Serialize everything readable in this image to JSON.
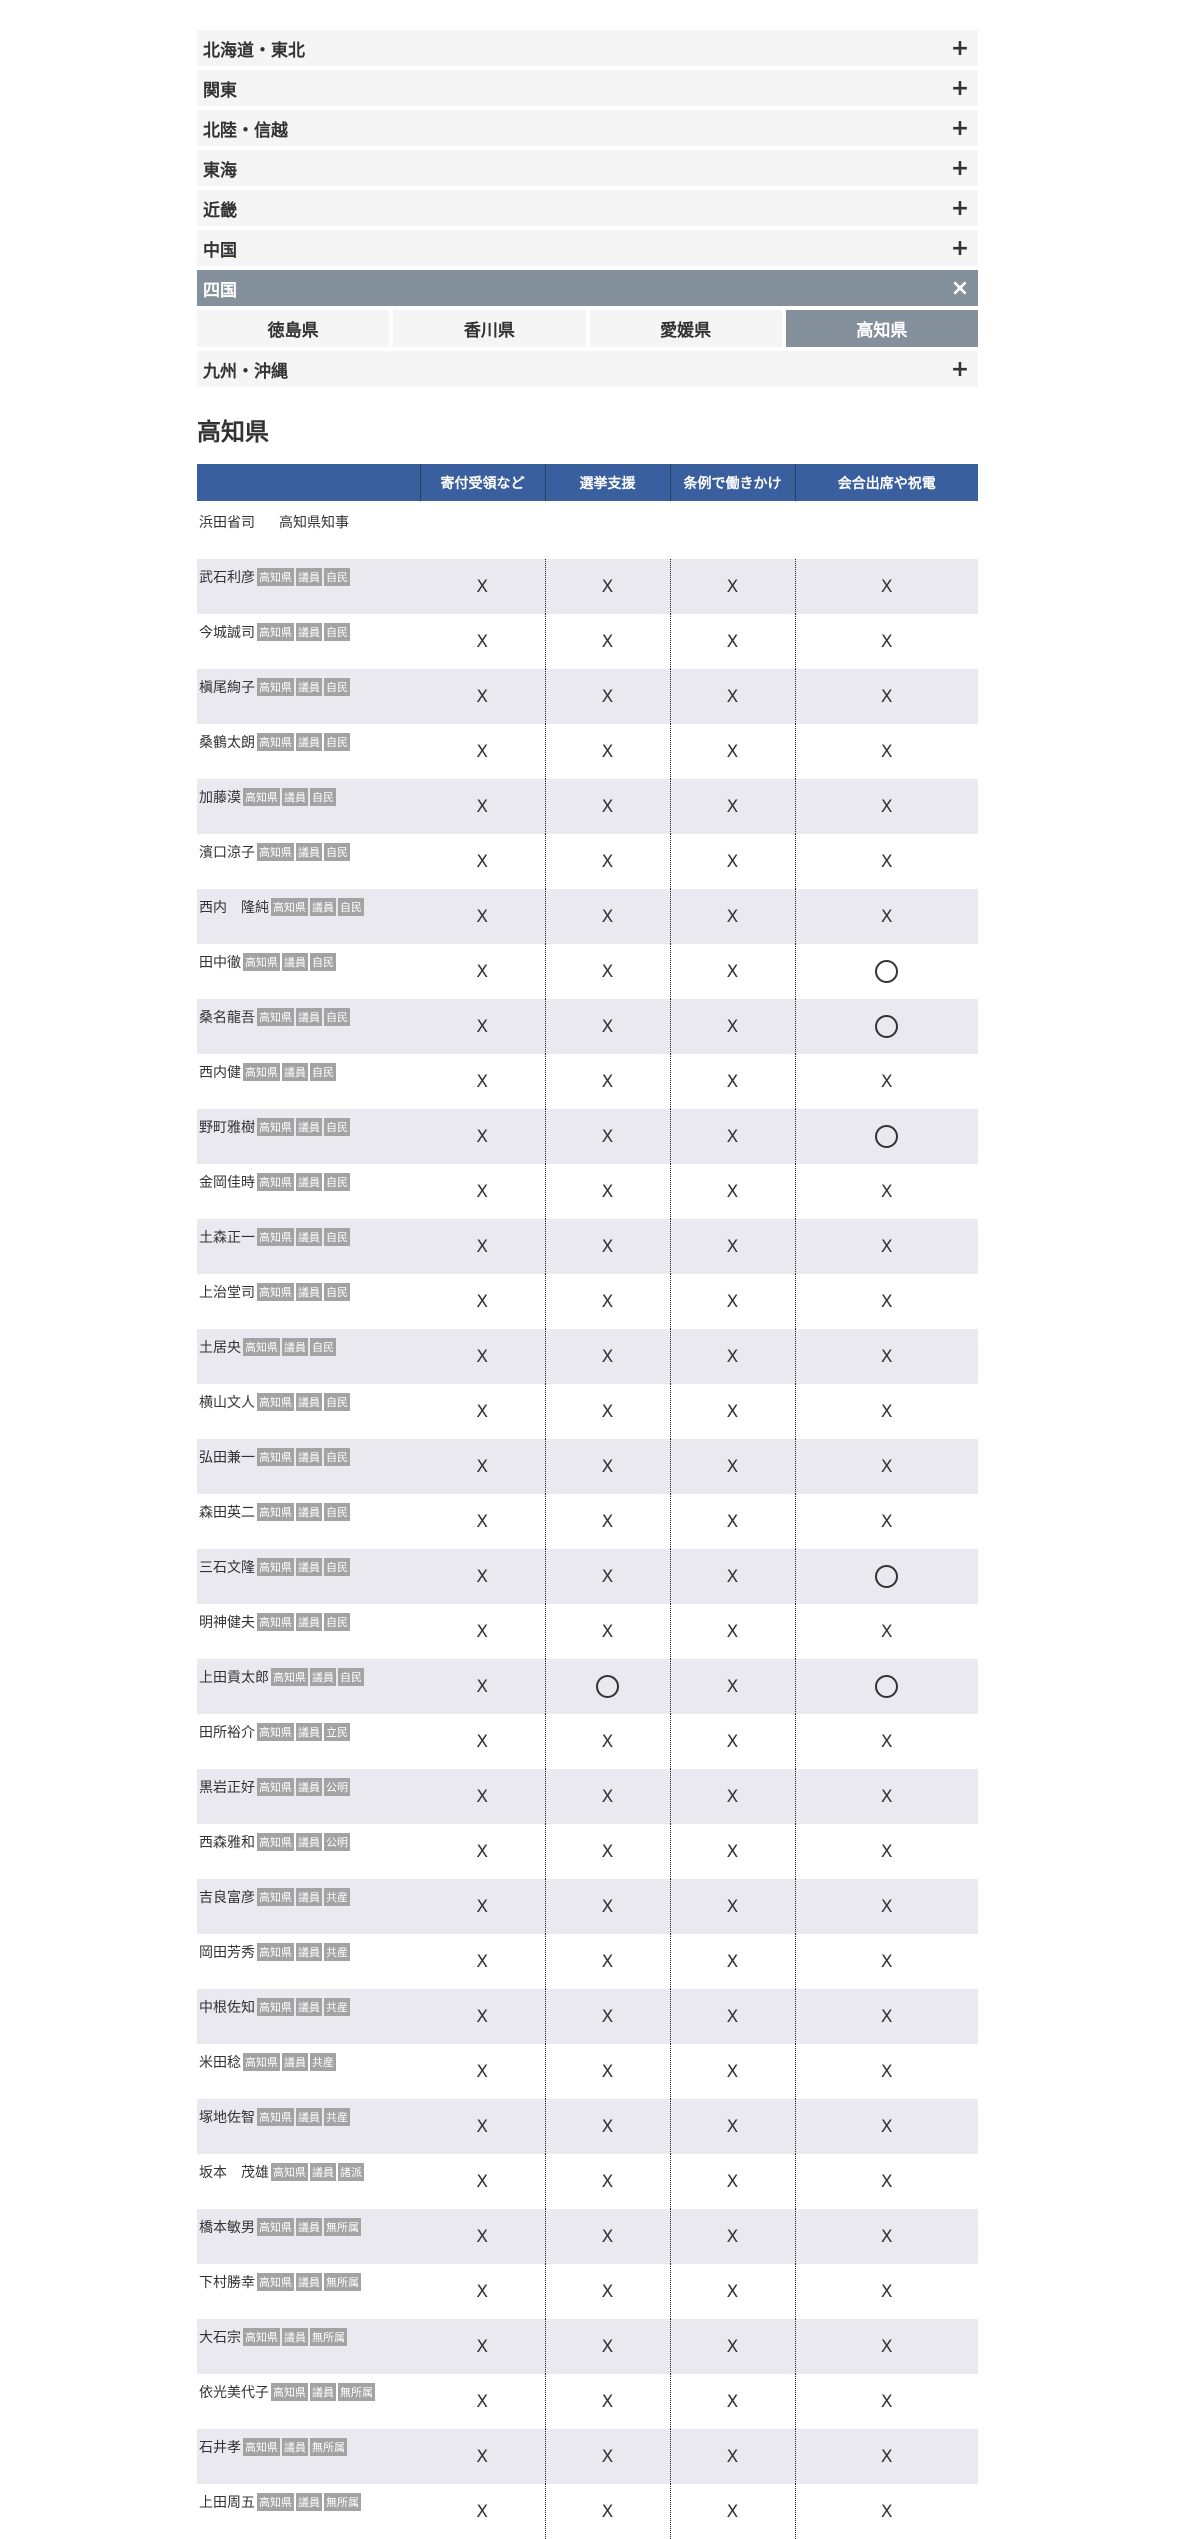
{
  "regions": [
    {
      "label": "北海道・東北",
      "icon": "+",
      "active": false
    },
    {
      "label": "関東",
      "icon": "+",
      "active": false
    },
    {
      "label": "北陸・信越",
      "icon": "+",
      "active": false
    },
    {
      "label": "東海",
      "icon": "+",
      "active": false
    },
    {
      "label": "近畿",
      "icon": "+",
      "active": false
    },
    {
      "label": "中国",
      "icon": "+",
      "active": false
    },
    {
      "label": "四国",
      "icon": "×",
      "active": true
    },
    {
      "label": "九州・沖縄",
      "icon": "+",
      "active": false
    }
  ],
  "prefectures": [
    {
      "label": "徳島県",
      "active": false
    },
    {
      "label": "香川県",
      "active": false
    },
    {
      "label": "愛媛県",
      "active": false
    },
    {
      "label": "高知県",
      "active": true
    }
  ],
  "section_title": "高知県",
  "table": {
    "headers": [
      "寄付受領など",
      "選挙支援",
      "条例で働きかけ",
      "会合出席や祝電"
    ],
    "governor": {
      "name": "浜田省司",
      "title": "高知県知事"
    },
    "rows": [
      {
        "name": "武石利彦",
        "tags": [
          "高知県",
          "議員",
          "自民"
        ],
        "marks": [
          "X",
          "X",
          "X",
          "X"
        ]
      },
      {
        "name": "今城誠司",
        "tags": [
          "高知県",
          "議員",
          "自民"
        ],
        "marks": [
          "X",
          "X",
          "X",
          "X"
        ]
      },
      {
        "name": "槇尾絢子",
        "tags": [
          "高知県",
          "議員",
          "自民"
        ],
        "marks": [
          "X",
          "X",
          "X",
          "X"
        ]
      },
      {
        "name": "桑鶴太朗",
        "tags": [
          "高知県",
          "議員",
          "自民"
        ],
        "marks": [
          "X",
          "X",
          "X",
          "X"
        ]
      },
      {
        "name": "加藤漠",
        "tags": [
          "高知県",
          "議員",
          "自民"
        ],
        "marks": [
          "X",
          "X",
          "X",
          "X"
        ]
      },
      {
        "name": "濱口涼子",
        "tags": [
          "高知県",
          "議員",
          "自民"
        ],
        "marks": [
          "X",
          "X",
          "X",
          "X"
        ]
      },
      {
        "name": "西内　隆純",
        "tags": [
          "高知県",
          "議員",
          "自民"
        ],
        "marks": [
          "X",
          "X",
          "X",
          "X"
        ]
      },
      {
        "name": "田中徹",
        "tags": [
          "高知県",
          "議員",
          "自民"
        ],
        "marks": [
          "X",
          "X",
          "X",
          "○"
        ]
      },
      {
        "name": "桑名龍吾",
        "tags": [
          "高知県",
          "議員",
          "自民"
        ],
        "marks": [
          "X",
          "X",
          "X",
          "○"
        ]
      },
      {
        "name": "西内健",
        "tags": [
          "高知県",
          "議員",
          "自民"
        ],
        "marks": [
          "X",
          "X",
          "X",
          "X"
        ]
      },
      {
        "name": "野町雅樹",
        "tags": [
          "高知県",
          "議員",
          "自民"
        ],
        "marks": [
          "X",
          "X",
          "X",
          "○"
        ]
      },
      {
        "name": "金岡佳時",
        "tags": [
          "高知県",
          "議員",
          "自民"
        ],
        "marks": [
          "X",
          "X",
          "X",
          "X"
        ]
      },
      {
        "name": "土森正一",
        "tags": [
          "高知県",
          "議員",
          "自民"
        ],
        "marks": [
          "X",
          "X",
          "X",
          "X"
        ]
      },
      {
        "name": "上治堂司",
        "tags": [
          "高知県",
          "議員",
          "自民"
        ],
        "marks": [
          "X",
          "X",
          "X",
          "X"
        ]
      },
      {
        "name": "土居央",
        "tags": [
          "高知県",
          "議員",
          "自民"
        ],
        "marks": [
          "X",
          "X",
          "X",
          "X"
        ]
      },
      {
        "name": "横山文人",
        "tags": [
          "高知県",
          "議員",
          "自民"
        ],
        "marks": [
          "X",
          "X",
          "X",
          "X"
        ]
      },
      {
        "name": "弘田兼一",
        "tags": [
          "高知県",
          "議員",
          "自民"
        ],
        "marks": [
          "X",
          "X",
          "X",
          "X"
        ]
      },
      {
        "name": "森田英二",
        "tags": [
          "高知県",
          "議員",
          "自民"
        ],
        "marks": [
          "X",
          "X",
          "X",
          "X"
        ]
      },
      {
        "name": "三石文隆",
        "tags": [
          "高知県",
          "議員",
          "自民"
        ],
        "marks": [
          "X",
          "X",
          "X",
          "○"
        ]
      },
      {
        "name": "明神健夫",
        "tags": [
          "高知県",
          "議員",
          "自民"
        ],
        "marks": [
          "X",
          "X",
          "X",
          "X"
        ]
      },
      {
        "name": "上田貢太郎",
        "tags": [
          "高知県",
          "議員",
          "自民"
        ],
        "marks": [
          "X",
          "○",
          "X",
          "○"
        ]
      },
      {
        "name": "田所裕介",
        "tags": [
          "高知県",
          "議員",
          "立民"
        ],
        "marks": [
          "X",
          "X",
          "X",
          "X"
        ]
      },
      {
        "name": "黒岩正好",
        "tags": [
          "高知県",
          "議員",
          "公明"
        ],
        "marks": [
          "X",
          "X",
          "X",
          "X"
        ]
      },
      {
        "name": "西森雅和",
        "tags": [
          "高知県",
          "議員",
          "公明"
        ],
        "marks": [
          "X",
          "X",
          "X",
          "X"
        ]
      },
      {
        "name": "吉良富彦",
        "tags": [
          "高知県",
          "議員",
          "共産"
        ],
        "marks": [
          "X",
          "X",
          "X",
          "X"
        ]
      },
      {
        "name": "岡田芳秀",
        "tags": [
          "高知県",
          "議員",
          "共産"
        ],
        "marks": [
          "X",
          "X",
          "X",
          "X"
        ]
      },
      {
        "name": "中根佐知",
        "tags": [
          "高知県",
          "議員",
          "共産"
        ],
        "marks": [
          "X",
          "X",
          "X",
          "X"
        ]
      },
      {
        "name": "米田稔",
        "tags": [
          "高知県",
          "議員",
          "共産"
        ],
        "marks": [
          "X",
          "X",
          "X",
          "X"
        ]
      },
      {
        "name": "塚地佐智",
        "tags": [
          "高知県",
          "議員",
          "共産"
        ],
        "marks": [
          "X",
          "X",
          "X",
          "X"
        ]
      },
      {
        "name": "坂本　茂雄",
        "tags": [
          "高知県",
          "議員",
          "諸派"
        ],
        "marks": [
          "X",
          "X",
          "X",
          "X"
        ]
      },
      {
        "name": "橋本敏男",
        "tags": [
          "高知県",
          "議員",
          "無所属"
        ],
        "marks": [
          "X",
          "X",
          "X",
          "X"
        ]
      },
      {
        "name": "下村勝幸",
        "tags": [
          "高知県",
          "議員",
          "無所属"
        ],
        "marks": [
          "X",
          "X",
          "X",
          "X"
        ]
      },
      {
        "name": "大石宗",
        "tags": [
          "高知県",
          "議員",
          "無所属"
        ],
        "marks": [
          "X",
          "X",
          "X",
          "X"
        ]
      },
      {
        "name": "依光美代子",
        "tags": [
          "高知県",
          "議員",
          "無所属"
        ],
        "marks": [
          "X",
          "X",
          "X",
          "X"
        ]
      },
      {
        "name": "石井孝",
        "tags": [
          "高知県",
          "議員",
          "無所属"
        ],
        "marks": [
          "X",
          "X",
          "X",
          "X"
        ]
      },
      {
        "name": "上田周五",
        "tags": [
          "高知県",
          "議員",
          "無所属"
        ],
        "marks": [
          "X",
          "X",
          "X",
          "X"
        ]
      }
    ]
  },
  "colors": {
    "header_blue": "#3a5f9e",
    "active_gray": "#84919c",
    "stripe": "#e9e9ef",
    "tag_gray": "#a3a3a3"
  }
}
